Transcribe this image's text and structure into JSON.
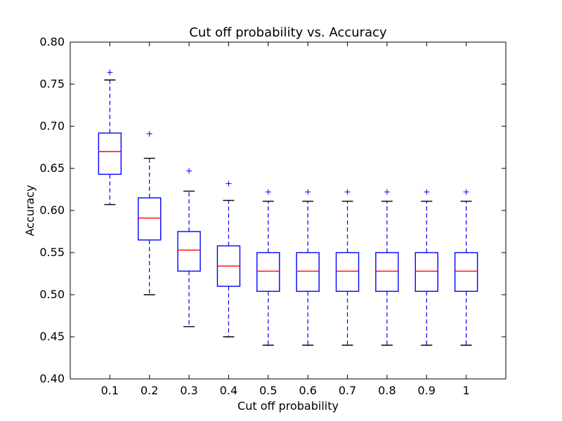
{
  "chart_data": {
    "type": "box",
    "title": "Cut off probability vs. Accuracy",
    "xlabel": "Cut off probability",
    "ylabel": "Accuracy",
    "ylim": [
      0.4,
      0.8
    ],
    "yticks": [
      "0.40",
      "0.45",
      "0.50",
      "0.55",
      "0.60",
      "0.65",
      "0.70",
      "0.75",
      "0.80"
    ],
    "grid": false,
    "colors": {
      "box": "#0000ff",
      "median": "#ff0000",
      "whisker": "#0000ff",
      "cap": "#000000",
      "flier": "#0000ff"
    },
    "categories": [
      "0.1",
      "0.2",
      "0.3",
      "0.4",
      "0.5",
      "0.6",
      "0.7",
      "0.8",
      "0.9",
      "1"
    ],
    "boxes": [
      {
        "label": "0.1",
        "whislo": 0.607,
        "q1": 0.643,
        "med": 0.67,
        "q3": 0.692,
        "whishi": 0.755,
        "fliers": [
          0.764
        ]
      },
      {
        "label": "0.2",
        "whislo": 0.5,
        "q1": 0.565,
        "med": 0.591,
        "q3": 0.615,
        "whishi": 0.662,
        "fliers": [
          0.691
        ]
      },
      {
        "label": "0.3",
        "whislo": 0.462,
        "q1": 0.528,
        "med": 0.553,
        "q3": 0.575,
        "whishi": 0.623,
        "fliers": [
          0.647
        ]
      },
      {
        "label": "0.4",
        "whislo": 0.45,
        "q1": 0.51,
        "med": 0.534,
        "q3": 0.558,
        "whishi": 0.612,
        "fliers": [
          0.632
        ]
      },
      {
        "label": "0.5",
        "whislo": 0.44,
        "q1": 0.504,
        "med": 0.528,
        "q3": 0.55,
        "whishi": 0.611,
        "fliers": [
          0.622
        ]
      },
      {
        "label": "0.6",
        "whislo": 0.44,
        "q1": 0.504,
        "med": 0.528,
        "q3": 0.55,
        "whishi": 0.611,
        "fliers": [
          0.622
        ]
      },
      {
        "label": "0.7",
        "whislo": 0.44,
        "q1": 0.504,
        "med": 0.528,
        "q3": 0.55,
        "whishi": 0.611,
        "fliers": [
          0.622
        ]
      },
      {
        "label": "0.8",
        "whislo": 0.44,
        "q1": 0.504,
        "med": 0.528,
        "q3": 0.55,
        "whishi": 0.611,
        "fliers": [
          0.622
        ]
      },
      {
        "label": "0.9",
        "whislo": 0.44,
        "q1": 0.504,
        "med": 0.528,
        "q3": 0.55,
        "whishi": 0.611,
        "fliers": [
          0.622
        ]
      },
      {
        "label": "1",
        "whislo": 0.44,
        "q1": 0.504,
        "med": 0.528,
        "q3": 0.55,
        "whishi": 0.611,
        "fliers": [
          0.622
        ]
      }
    ]
  }
}
